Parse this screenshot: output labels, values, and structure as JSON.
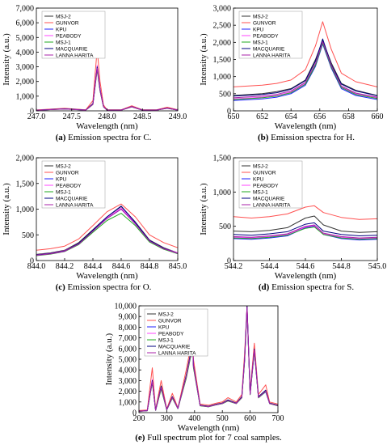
{
  "series_names": [
    "MSJ-2",
    "GUNVOR",
    "KPU",
    "PEABODY",
    "MSJ-1",
    "MACQUARIE",
    "LANNA HARITA"
  ],
  "series_colors": [
    "#333333",
    "#ff5050",
    "#2222ff",
    "#ff44ff",
    "#22aa22",
    "#000080",
    "#aa22aa"
  ],
  "chart_data": [
    {
      "type": "line",
      "caption_label": "(a)",
      "caption_text": "Emission spectra for C.",
      "xlabel": "Wavelength (nm)",
      "ylabel": "Intensity (a.u.)",
      "xlim": [
        247.0,
        249.0
      ],
      "ylim": [
        0,
        7000
      ],
      "xticks": [
        "247.0",
        "247.5",
        "248.0",
        "248.5",
        "249.0"
      ],
      "yticks": [
        "0",
        "1,000",
        "2,000",
        "3,000",
        "4,000",
        "5,000",
        "6,000",
        "7,000"
      ],
      "x": [
        247.0,
        247.4,
        247.7,
        247.8,
        247.86,
        247.9,
        247.95,
        248.0,
        248.2,
        248.35,
        248.5,
        248.7,
        248.85,
        249.0
      ],
      "series": [
        {
          "name": "MSJ-2",
          "values": [
            50,
            150,
            60,
            500,
            3000,
            1500,
            300,
            60,
            60,
            300,
            60,
            60,
            200,
            60
          ]
        },
        {
          "name": "GUNVOR",
          "values": [
            60,
            170,
            70,
            700,
            4200,
            2000,
            400,
            70,
            70,
            350,
            70,
            70,
            250,
            70
          ]
        },
        {
          "name": "KPU",
          "values": [
            40,
            130,
            50,
            450,
            2900,
            1400,
            280,
            50,
            50,
            280,
            50,
            50,
            180,
            50
          ]
        },
        {
          "name": "PEABODY",
          "values": [
            45,
            140,
            55,
            480,
            3100,
            1500,
            290,
            55,
            55,
            290,
            55,
            55,
            190,
            55
          ]
        },
        {
          "name": "MSJ-1",
          "values": [
            40,
            120,
            50,
            430,
            2800,
            1350,
            270,
            50,
            50,
            270,
            50,
            50,
            170,
            50
          ]
        },
        {
          "name": "MACQUARIE",
          "values": [
            45,
            140,
            55,
            470,
            3000,
            1450,
            285,
            55,
            55,
            285,
            55,
            55,
            185,
            55
          ]
        },
        {
          "name": "LANNA HARITA",
          "values": [
            40,
            125,
            50,
            440,
            2900,
            1400,
            275,
            50,
            50,
            275,
            50,
            50,
            175,
            50
          ]
        }
      ]
    },
    {
      "type": "line",
      "caption_label": "(b)",
      "caption_text": "Emission spectra for H.",
      "xlabel": "Wavelength (nm)",
      "ylabel": "Intensity (a.u.)",
      "xlim": [
        650,
        660
      ],
      "ylim": [
        0,
        3000
      ],
      "xticks": [
        "650",
        "652",
        "654",
        "656",
        "658",
        "660"
      ],
      "yticks": [
        "0",
        "500",
        "1,000",
        "1,500",
        "2,000",
        "2,500",
        "3,000"
      ],
      "x": [
        650,
        652,
        653,
        654,
        655,
        655.7,
        656.2,
        656.8,
        657.5,
        658.5,
        660
      ],
      "series": [
        {
          "name": "MSJ-2",
          "values": [
            450,
            500,
            560,
            650,
            900,
            1500,
            2050,
            1400,
            800,
            600,
            450
          ]
        },
        {
          "name": "GUNVOR",
          "values": [
            700,
            750,
            800,
            900,
            1200,
            1900,
            2600,
            1800,
            1100,
            850,
            700
          ]
        },
        {
          "name": "KPU",
          "values": [
            300,
            350,
            400,
            500,
            750,
            1300,
            1950,
            1250,
            650,
            450,
            330
          ]
        },
        {
          "name": "PEABODY",
          "values": [
            350,
            400,
            450,
            550,
            800,
            1350,
            2000,
            1300,
            700,
            500,
            380
          ]
        },
        {
          "name": "MSJ-1",
          "values": [
            330,
            380,
            430,
            530,
            780,
            1330,
            1980,
            1280,
            680,
            480,
            360
          ]
        },
        {
          "name": "MACQUARIE",
          "values": [
            430,
            480,
            530,
            630,
            880,
            1450,
            2100,
            1350,
            780,
            580,
            440
          ]
        },
        {
          "name": "LANNA HARITA",
          "values": [
            380,
            430,
            480,
            580,
            830,
            1380,
            2020,
            1320,
            720,
            520,
            400
          ]
        }
      ]
    },
    {
      "type": "line",
      "caption_label": "(c)",
      "caption_text": "Emission spectra for O.",
      "xlabel": "Wavelength (nm)",
      "ylabel": "Intensity (a.u.)",
      "xlim": [
        844.0,
        845.0
      ],
      "ylim": [
        0,
        2000
      ],
      "xticks": [
        "844.0",
        "844.2",
        "844.4",
        "844.6",
        "844.8",
        "845.0"
      ],
      "yticks": [
        "0",
        "500",
        "1,000",
        "1,500",
        "2,000"
      ],
      "x": [
        844.0,
        844.1,
        844.2,
        844.3,
        844.4,
        844.5,
        844.6,
        844.7,
        844.8,
        844.9,
        845.0
      ],
      "series": [
        {
          "name": "MSJ-2",
          "values": [
            120,
            150,
            200,
            350,
            600,
            850,
            1050,
            750,
            400,
            250,
            150
          ]
        },
        {
          "name": "GUNVOR",
          "values": [
            200,
            230,
            280,
            420,
            680,
            950,
            1100,
            850,
            500,
            350,
            250
          ]
        },
        {
          "name": "KPU",
          "values": [
            100,
            130,
            180,
            320,
            570,
            820,
            1000,
            720,
            380,
            230,
            140
          ]
        },
        {
          "name": "PEABODY",
          "values": [
            110,
            140,
            190,
            330,
            580,
            830,
            1020,
            730,
            390,
            240,
            150
          ]
        },
        {
          "name": "MSJ-1",
          "values": [
            95,
            125,
            175,
            310,
            550,
            780,
            920,
            680,
            360,
            220,
            130
          ]
        },
        {
          "name": "MACQUARIE",
          "values": [
            105,
            135,
            185,
            330,
            590,
            850,
            1060,
            740,
            390,
            240,
            140
          ]
        },
        {
          "name": "LANNA HARITA",
          "values": [
            100,
            130,
            180,
            320,
            570,
            820,
            1000,
            710,
            380,
            230,
            140
          ]
        }
      ]
    },
    {
      "type": "line",
      "caption_label": "(d)",
      "caption_text": "Emission spectra for S.",
      "xlabel": "Wavelength (nm)",
      "ylabel": "Intensity (a.u.)",
      "xlim": [
        544.2,
        545.0
      ],
      "ylim": [
        0,
        1500
      ],
      "xticks": [
        "544.2",
        "544.4",
        "544.6",
        "544.8",
        "545.0"
      ],
      "yticks": [
        "0",
        "500",
        "1,000",
        "1,500"
      ],
      "x": [
        544.2,
        544.3,
        544.4,
        544.5,
        544.6,
        544.65,
        544.7,
        544.8,
        544.9,
        545.0
      ],
      "series": [
        {
          "name": "MSJ-2",
          "values": [
            430,
            420,
            440,
            480,
            620,
            650,
            520,
            430,
            410,
            420
          ]
        },
        {
          "name": "GUNVOR",
          "values": [
            640,
            620,
            640,
            680,
            780,
            800,
            700,
            630,
            600,
            610
          ]
        },
        {
          "name": "KPU",
          "values": [
            320,
            310,
            330,
            360,
            480,
            500,
            380,
            320,
            300,
            310
          ]
        },
        {
          "name": "PEABODY",
          "values": [
            340,
            330,
            350,
            380,
            490,
            510,
            390,
            340,
            320,
            330
          ]
        },
        {
          "name": "MSJ-1",
          "values": [
            330,
            320,
            340,
            370,
            470,
            490,
            380,
            330,
            310,
            320
          ]
        },
        {
          "name": "MACQUARIE",
          "values": [
            380,
            370,
            390,
            420,
            530,
            550,
            430,
            380,
            360,
            370
          ]
        },
        {
          "name": "LANNA HARITA",
          "values": [
            350,
            340,
            360,
            390,
            500,
            520,
            400,
            350,
            330,
            340
          ]
        }
      ]
    },
    {
      "type": "line",
      "caption_label": "(e)",
      "caption_text": "Full spectrum plot for 7 coal samples.",
      "xlabel": "Wavelength (nm)",
      "ylabel": "Intensity (a.u.)",
      "xlim": [
        200,
        700
      ],
      "ylim": [
        0,
        10000
      ],
      "xticks": [
        "200",
        "300",
        "400",
        "500",
        "600",
        "700"
      ],
      "yticks": [
        "0",
        "1,000",
        "2,000",
        "3,000",
        "4,000",
        "5,000",
        "6,000",
        "7,000",
        "8,000",
        "9,000",
        "10,000"
      ],
      "x": [
        200,
        230,
        248,
        260,
        280,
        300,
        320,
        340,
        370,
        385,
        394,
        396,
        420,
        450,
        480,
        500,
        520,
        550,
        570,
        580,
        589,
        600,
        615,
        630,
        656,
        670,
        700
      ],
      "series": [
        {
          "name": "MSJ-2",
          "values": [
            150,
            200,
            3000,
            250,
            2500,
            300,
            1500,
            400,
            3500,
            5500,
            6000,
            4500,
            700,
            600,
            800,
            900,
            1200,
            900,
            1500,
            5000,
            10000,
            1800,
            6000,
            1500,
            2100,
            900,
            700
          ]
        },
        {
          "name": "GUNVOR",
          "values": [
            200,
            250,
            4200,
            300,
            3000,
            350,
            1800,
            450,
            4000,
            6000,
            6500,
            5000,
            800,
            700,
            900,
            1000,
            1400,
            1000,
            1700,
            5500,
            10000,
            2000,
            6500,
            1700,
            2600,
            1000,
            800
          ]
        },
        {
          "name": "KPU",
          "values": [
            120,
            180,
            2900,
            220,
            2300,
            270,
            1400,
            380,
            3300,
            5200,
            5800,
            4300,
            650,
            550,
            750,
            850,
            1100,
            850,
            1400,
            4800,
            9800,
            1700,
            5800,
            1400,
            1950,
            850,
            650
          ]
        },
        {
          "name": "PEABODY",
          "values": [
            130,
            190,
            3100,
            230,
            2400,
            280,
            1450,
            390,
            3400,
            5300,
            5900,
            4400,
            670,
            570,
            770,
            870,
            1150,
            870,
            1450,
            4900,
            9900,
            1750,
            5900,
            1450,
            2000,
            870,
            670
          ]
        },
        {
          "name": "MSJ-1",
          "values": [
            110,
            170,
            2800,
            210,
            2200,
            260,
            1350,
            370,
            3200,
            5100,
            5700,
            4200,
            640,
            540,
            740,
            840,
            1080,
            840,
            1380,
            4700,
            9700,
            1680,
            5700,
            1380,
            1980,
            840,
            640
          ]
        },
        {
          "name": "MACQUARIE",
          "values": [
            140,
            190,
            3000,
            240,
            2450,
            290,
            1480,
            395,
            3450,
            5400,
            5950,
            4450,
            680,
            580,
            780,
            880,
            1170,
            880,
            1470,
            4950,
            9950,
            1770,
            5950,
            1470,
            2100,
            880,
            680
          ]
        },
        {
          "name": "LANNA HARITA",
          "values": [
            125,
            185,
            2900,
            225,
            2350,
            275,
            1420,
            385,
            3350,
            5250,
            5850,
            4350,
            660,
            560,
            760,
            860,
            1120,
            860,
            1420,
            4850,
            9850,
            1720,
            5850,
            1420,
            2020,
            860,
            660
          ]
        }
      ]
    }
  ]
}
